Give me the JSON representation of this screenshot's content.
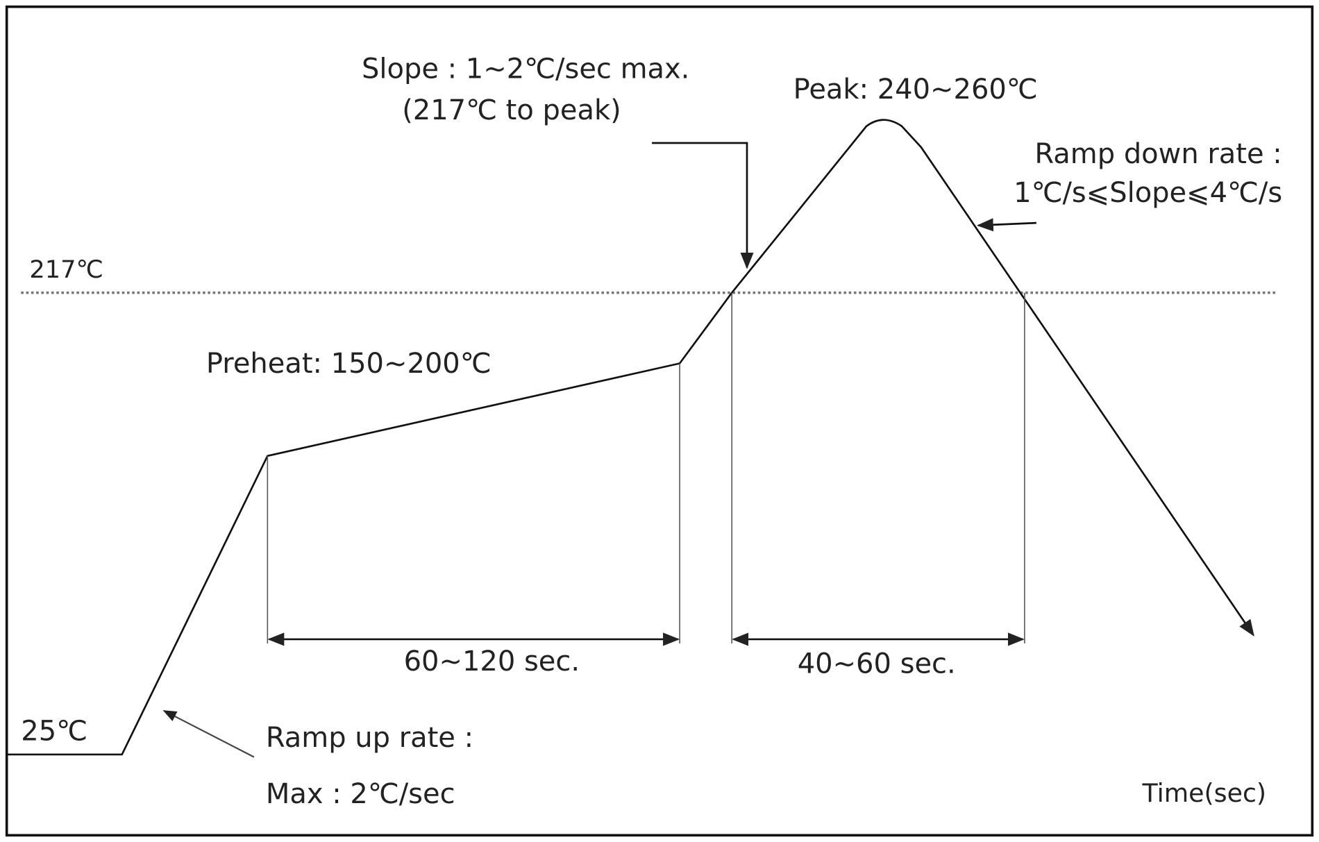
{
  "labels": {
    "slope_line1": "Slope : 1~2℃/sec max.",
    "slope_line2": "(217℃ to peak)",
    "peak": "Peak: 240~260℃",
    "ramp_down_line1": "Ramp down rate :",
    "ramp_down_line2": "1℃/s⩽Slope⩽4℃/s",
    "liquidus": "217℃",
    "preheat": "Preheat: 150~200℃",
    "preheat_time": "60~120 sec.",
    "reflow_time": "40~60 sec.",
    "start_temp": "25℃",
    "ramp_up_line1": "Ramp up rate :",
    "ramp_up_line2": "Max : 2℃/sec",
    "x_axis": "Time(sec)"
  }
}
